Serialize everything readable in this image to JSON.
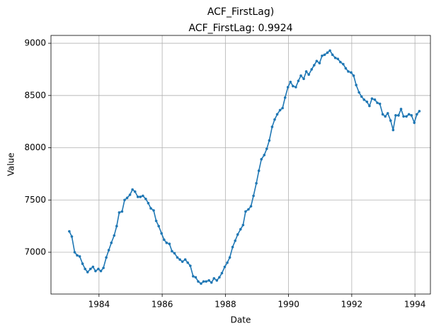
{
  "chart_data": {
    "type": "line",
    "title": "ACF_FirstLag)",
    "subtitle": "ACF_FirstLag: 0.9924",
    "x_label": "Date",
    "y_label": "Value",
    "xlim": [
      1982.48,
      1994.49
    ],
    "ylim": [
      6600,
      9075
    ],
    "xticks": [
      1984,
      1986,
      1988,
      1990,
      1992,
      1994
    ],
    "yticks": [
      7000,
      7500,
      8000,
      8500,
      9000
    ],
    "grid": true,
    "x": [
      1983.06,
      1983.14,
      1983.23,
      1983.31,
      1983.39,
      1983.48,
      1983.56,
      1983.64,
      1983.73,
      1983.81,
      1983.89,
      1983.98,
      1984.06,
      1984.14,
      1984.23,
      1984.31,
      1984.39,
      1984.48,
      1984.56,
      1984.64,
      1984.73,
      1984.81,
      1984.89,
      1984.98,
      1985.06,
      1985.14,
      1985.23,
      1985.31,
      1985.39,
      1985.48,
      1985.56,
      1985.64,
      1985.73,
      1985.81,
      1985.89,
      1985.98,
      1986.06,
      1986.14,
      1986.23,
      1986.31,
      1986.39,
      1986.48,
      1986.56,
      1986.64,
      1986.73,
      1986.81,
      1986.89,
      1986.98,
      1987.06,
      1987.14,
      1987.23,
      1987.31,
      1987.39,
      1987.48,
      1987.56,
      1987.64,
      1987.73,
      1987.81,
      1987.89,
      1987.98,
      1988.06,
      1988.14,
      1988.23,
      1988.31,
      1988.39,
      1988.48,
      1988.56,
      1988.64,
      1988.73,
      1988.81,
      1988.89,
      1988.98,
      1989.06,
      1989.14,
      1989.23,
      1989.31,
      1989.39,
      1989.48,
      1989.56,
      1989.64,
      1989.73,
      1989.81,
      1989.89,
      1989.98,
      1990.06,
      1990.14,
      1990.23,
      1990.31,
      1990.39,
      1990.48,
      1990.56,
      1990.64,
      1990.73,
      1990.81,
      1990.89,
      1990.98,
      1991.06,
      1991.14,
      1991.23,
      1991.31,
      1991.39,
      1991.48,
      1991.56,
      1991.64,
      1991.73,
      1991.81,
      1991.89,
      1991.98,
      1992.06,
      1992.14,
      1992.23,
      1992.31,
      1992.39,
      1992.48,
      1992.56,
      1992.64,
      1992.73,
      1992.81,
      1992.89,
      1992.98,
      1993.06,
      1993.14,
      1993.23,
      1993.31,
      1993.39,
      1993.48,
      1993.56,
      1993.64,
      1993.73,
      1993.81,
      1993.89,
      1993.98,
      1994.06,
      1994.14
    ],
    "series": [
      {
        "color": "#1f77b4",
        "values": [
          7200,
          7150,
          7000,
          6970,
          6960,
          6890,
          6840,
          6810,
          6840,
          6860,
          6820,
          6840,
          6820,
          6850,
          6950,
          7020,
          7090,
          7160,
          7250,
          7380,
          7390,
          7500,
          7520,
          7550,
          7600,
          7580,
          7530,
          7530,
          7540,
          7510,
          7470,
          7420,
          7400,
          7300,
          7250,
          7180,
          7120,
          7090,
          7080,
          7010,
          6990,
          6950,
          6930,
          6910,
          6930,
          6900,
          6870,
          6770,
          6760,
          6720,
          6700,
          6720,
          6720,
          6730,
          6710,
          6750,
          6730,
          6760,
          6800,
          6860,
          6900,
          6950,
          7050,
          7110,
          7170,
          7220,
          7260,
          7390,
          7410,
          7440,
          7540,
          7660,
          7780,
          7890,
          7930,
          7990,
          8070,
          8200,
          8270,
          8320,
          8360,
          8380,
          8480,
          8580,
          8630,
          8590,
          8580,
          8640,
          8690,
          8660,
          8730,
          8700,
          8750,
          8790,
          8830,
          8810,
          8880,
          8890,
          8910,
          8930,
          8890,
          8860,
          8850,
          8820,
          8800,
          8760,
          8730,
          8720,
          8690,
          8600,
          8530,
          8490,
          8460,
          8440,
          8400,
          8470,
          8460,
          8430,
          8420,
          8320,
          8300,
          8330,
          8260,
          8170,
          8310,
          8310,
          8370,
          8300,
          8300,
          8320,
          8310,
          8240,
          8320,
          8350
        ]
      }
    ]
  }
}
